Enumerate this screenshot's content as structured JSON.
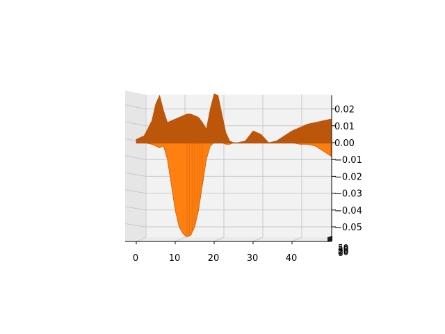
{
  "chart_data": {
    "type": "surface",
    "title": "",
    "xlabel": "",
    "ylabel": "",
    "zlabel": "",
    "surface_color": "#ff7f0e",
    "grid": true,
    "x_ticks": [
      "0",
      "10",
      "20",
      "30",
      "40"
    ],
    "z_ticks": [
      "0.02",
      "0.01",
      "0.00",
      "−0.01",
      "−0.02",
      "−0.03",
      "−0.04",
      "−0.05"
    ],
    "y_ticks": [
      "0",
      "10",
      "20",
      "30",
      "40",
      "50"
    ],
    "xlim": [
      0,
      50
    ],
    "zlim": [
      -0.055,
      0.027
    ],
    "ylim": [
      0,
      50
    ],
    "profile": {
      "x": [
        0,
        2,
        4,
        5,
        6,
        7,
        8,
        9,
        10,
        11,
        12,
        13,
        14,
        15,
        16,
        17,
        18,
        19,
        20,
        21,
        22,
        23,
        24,
        25,
        26,
        28,
        30,
        32,
        34,
        36,
        38,
        40,
        42,
        44,
        46,
        48,
        50
      ],
      "z_max": [
        0.002,
        0.004,
        0.013,
        0.023,
        0.028,
        0.019,
        0.012,
        0.013,
        0.014,
        0.015,
        0.016,
        0.017,
        0.017,
        0.016,
        0.015,
        0.012,
        0.008,
        0.02,
        0.029,
        0.028,
        0.017,
        0.006,
        0.001,
        0.0,
        0.0,
        0.001,
        0.007,
        0.005,
        0.0,
        0.001,
        0.004,
        0.007,
        0.009,
        0.011,
        0.012,
        0.013,
        0.014
      ],
      "z_min": [
        0.0,
        0.0,
        -0.001,
        -0.002,
        -0.003,
        -0.002,
        -0.01,
        -0.025,
        -0.04,
        -0.05,
        -0.054,
        -0.056,
        -0.055,
        -0.05,
        -0.04,
        -0.025,
        -0.01,
        -0.002,
        0.0,
        0.0,
        0.0,
        -0.001,
        -0.001,
        0.0,
        0.0,
        0.0,
        0.0,
        0.0,
        0.0,
        0.0,
        0.0,
        0.0,
        -0.001,
        -0.001,
        -0.002,
        -0.005,
        -0.008
      ]
    }
  }
}
